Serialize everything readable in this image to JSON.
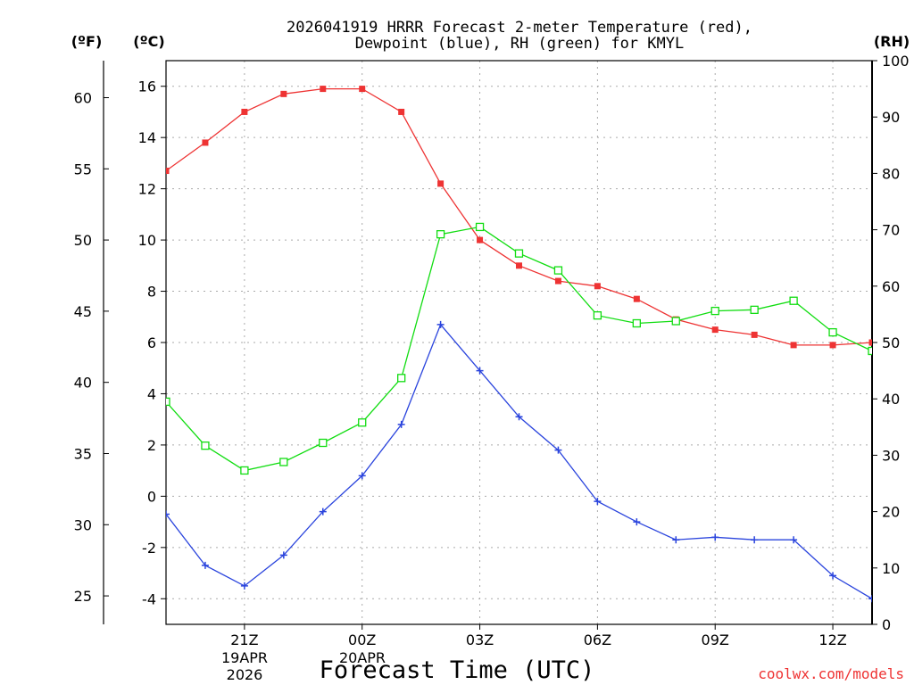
{
  "chart_data": {
    "type": "line",
    "title_lines": [
      "2026041919 HRRR Forecast 2-meter Temperature (red),",
      "Dewpoint (blue), RH (green) for KMYL"
    ],
    "xlabel": "Forecast Time (UTC)",
    "credit": "coolwx.com/models",
    "colors": {
      "temperature": "#ee3333",
      "dewpoint": "#2a44dd",
      "rh": "#11dd11",
      "grid": "#aaaaaa"
    },
    "x_range": [
      0,
      18
    ],
    "x_ticks": [
      {
        "x": 2,
        "label": "21Z"
      },
      {
        "x": 5,
        "label": "00Z"
      },
      {
        "x": 8,
        "label": "03Z"
      },
      {
        "x": 11,
        "label": "06Z"
      },
      {
        "x": 14,
        "label": "09Z"
      },
      {
        "x": 17,
        "label": "12Z"
      }
    ],
    "date_labels": [
      "19APR",
      "2026",
      "20APR"
    ],
    "celsius_axis": {
      "label": "(ºC)",
      "range": [
        -5,
        17
      ],
      "ticks": [
        -4,
        -2,
        0,
        2,
        4,
        6,
        8,
        10,
        12,
        14,
        16
      ]
    },
    "fahrenheit_axis": {
      "label": "(ºF)",
      "ticks": [
        25,
        30,
        35,
        40,
        45,
        50,
        55,
        60
      ]
    },
    "rh_axis": {
      "label": "(RH)",
      "range": [
        0,
        100
      ],
      "ticks": [
        0,
        10,
        20,
        30,
        40,
        50,
        60,
        70,
        80,
        90,
        100
      ]
    },
    "series": [
      {
        "name": "Temperature",
        "units": "C",
        "marker": "filled-square",
        "x": [
          0,
          1,
          2,
          3,
          4,
          5,
          6,
          7,
          8,
          9,
          10,
          11,
          12,
          13,
          14,
          15,
          16,
          17,
          18
        ],
        "values": [
          12.7,
          13.8,
          15.0,
          15.7,
          15.9,
          15.9,
          15.0,
          12.2,
          10.0,
          9.0,
          8.4,
          8.2,
          7.7,
          6.9,
          6.5,
          6.3,
          5.9,
          5.9,
          6.0
        ]
      },
      {
        "name": "Dewpoint",
        "units": "C",
        "marker": "plus",
        "x": [
          0,
          1,
          2,
          3,
          4,
          5,
          6,
          7,
          8,
          9,
          10,
          11,
          12,
          13,
          14,
          15,
          16,
          17,
          18
        ],
        "values": [
          -0.7,
          -2.7,
          -3.5,
          -2.3,
          -0.6,
          0.8,
          2.8,
          6.7,
          4.9,
          3.1,
          1.8,
          -0.2,
          -1.0,
          -1.7,
          -1.6,
          -1.7,
          -1.7,
          -3.1,
          -4.0
        ]
      },
      {
        "name": "RH",
        "units": "%",
        "marker": "open-square",
        "x": [
          0,
          1,
          2,
          3,
          4,
          5,
          6,
          7,
          8,
          9,
          10,
          11,
          12,
          13,
          14,
          15,
          16,
          17,
          18
        ],
        "values": [
          39.5,
          31.7,
          27.3,
          28.8,
          32.2,
          35.8,
          43.7,
          69.2,
          70.5,
          65.8,
          62.8,
          54.8,
          53.4,
          53.8,
          55.6,
          55.8,
          57.4,
          51.8,
          48.5
        ]
      }
    ]
  }
}
